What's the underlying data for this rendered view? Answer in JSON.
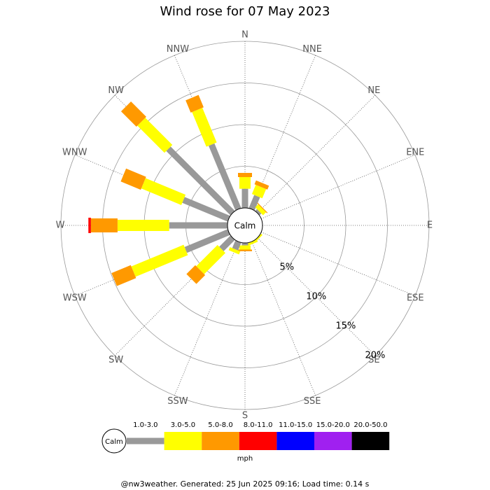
{
  "chart_data": {
    "type": "windrose",
    "title": "Wind rose for 07 May 2023",
    "directions": [
      "N",
      "NNE",
      "NE",
      "ENE",
      "E",
      "ESE",
      "SE",
      "SSE",
      "S",
      "SSW",
      "SW",
      "WSW",
      "W",
      "WNW",
      "NW",
      "NNW"
    ],
    "calm_label": "Calm",
    "unit_label": "mph",
    "rlim": [
      0,
      20
    ],
    "rticks": [
      {
        "value": 5,
        "label": "5%"
      },
      {
        "value": 10,
        "label": "10%"
      },
      {
        "value": 15,
        "label": "15%"
      },
      {
        "value": 20,
        "label": "20%"
      }
    ],
    "series": [
      {
        "name": "1.0-3.0",
        "color": "#999999",
        "values": [
          2.3,
          1.7,
          0.3,
          0,
          0,
          0,
          0,
          0,
          0.3,
          1.0,
          1.9,
          5.6,
          7.0,
          5.9,
          10.9,
          8.4
        ]
      },
      {
        "name": "3.0-5.0",
        "color": "#ffff00",
        "values": [
          1.4,
          1.2,
          0.5,
          0,
          0,
          0,
          0.2,
          0.3,
          0.5,
          0.4,
          3.6,
          6.8,
          6.2,
          5.2,
          4.6,
          4.5
        ]
      },
      {
        "name": "5.0-8.0",
        "color": "#ff9900",
        "values": [
          0.5,
          0.5,
          0.1,
          0,
          0,
          0,
          0,
          0,
          0.2,
          0,
          1.5,
          2.5,
          3.2,
          2.6,
          2.6,
          1.6
        ]
      },
      {
        "name": "8.0-11.0",
        "color": "#ff0000",
        "values": [
          0,
          0,
          0,
          0,
          0,
          0,
          0,
          0,
          0,
          0,
          0,
          0,
          0.3,
          0,
          0,
          0
        ]
      },
      {
        "name": "11.0-15.0",
        "color": "#0000ff",
        "values": [
          0,
          0,
          0,
          0,
          0,
          0,
          0,
          0,
          0,
          0,
          0,
          0,
          0,
          0,
          0,
          0
        ]
      },
      {
        "name": "15.0-20.0",
        "color": "#a020f0",
        "values": [
          0,
          0,
          0,
          0,
          0,
          0,
          0,
          0,
          0,
          0,
          0,
          0,
          0,
          0,
          0,
          0
        ]
      },
      {
        "name": "20.0-50.0",
        "color": "#000000",
        "values": [
          0,
          0,
          0,
          0,
          0,
          0,
          0,
          0,
          0,
          0,
          0,
          0,
          0,
          0,
          0,
          0
        ]
      }
    ],
    "footer": "@nw3weather. Generated: 25 Jun 2025 09:16; Load time: 0.14 s"
  }
}
